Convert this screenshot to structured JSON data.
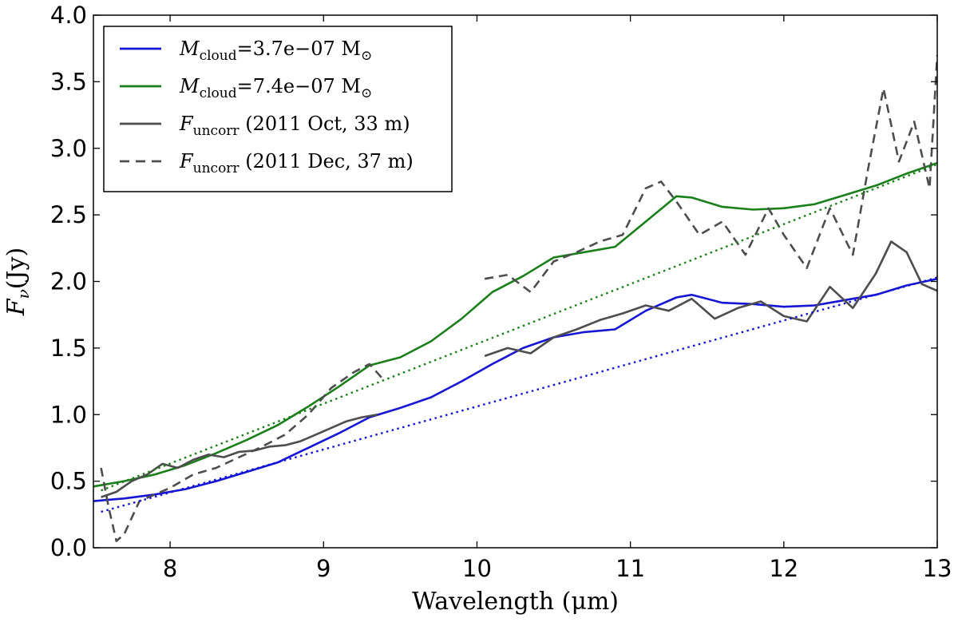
{
  "chart_data": {
    "type": "line",
    "xlabel": "Wavelength (μm)",
    "ylabel": "F_ν (Jy)",
    "ylabel_main": "F",
    "ylabel_sub": "ν",
    "ylabel_unit": "(Jy)",
    "xlim": [
      7.5,
      13
    ],
    "ylim": [
      0.0,
      4.0
    ],
    "x_ticks": [
      8,
      9,
      10,
      11,
      12,
      13
    ],
    "y_ticks": [
      0.0,
      0.5,
      1.0,
      1.5,
      2.0,
      2.5,
      3.0,
      3.5,
      4.0
    ],
    "x_tick_labels": [
      "8",
      "9",
      "10",
      "11",
      "12",
      "13"
    ],
    "y_tick_labels": [
      "0.0",
      "0.5",
      "1.0",
      "1.5",
      "2.0",
      "2.5",
      "3.0",
      "3.5",
      "4.0"
    ],
    "grid": false,
    "legend_position": "top-left",
    "series": [
      {
        "name": "M_cloud = 3.7e-07 M_sun",
        "legend_main": "M",
        "legend_sub": "cloud",
        "legend_rest": "=3.7e−07 M",
        "legend_sun": "⊙",
        "color": "#1515d4",
        "style": "solid",
        "x": [
          7.5,
          7.7,
          7.9,
          8.1,
          8.3,
          8.5,
          8.7,
          8.9,
          9.1,
          9.3,
          9.5,
          9.7,
          9.9,
          10.1,
          10.3,
          10.5,
          10.7,
          10.9,
          11.1,
          11.3,
          11.4,
          11.6,
          11.8,
          12.0,
          12.2,
          12.4,
          12.6,
          12.8,
          13.0
        ],
        "y": [
          0.35,
          0.37,
          0.4,
          0.44,
          0.5,
          0.57,
          0.64,
          0.75,
          0.86,
          0.98,
          1.05,
          1.13,
          1.25,
          1.38,
          1.5,
          1.58,
          1.62,
          1.64,
          1.78,
          1.88,
          1.9,
          1.84,
          1.83,
          1.81,
          1.82,
          1.86,
          1.9,
          1.97,
          2.02
        ]
      },
      {
        "name": "M_cloud = 7.4e-07 M_sun",
        "legend_main": "M",
        "legend_sub": "cloud",
        "legend_rest": "=7.4e−07 M",
        "legend_sun": "⊙",
        "color": "#1a7f1a",
        "style": "solid",
        "x": [
          7.5,
          7.7,
          7.9,
          8.1,
          8.3,
          8.5,
          8.7,
          8.9,
          9.1,
          9.3,
          9.5,
          9.7,
          9.9,
          10.1,
          10.3,
          10.5,
          10.7,
          10.9,
          11.1,
          11.3,
          11.4,
          11.6,
          11.8,
          12.0,
          12.2,
          12.4,
          12.6,
          12.8,
          13.0
        ],
        "y": [
          0.46,
          0.5,
          0.55,
          0.62,
          0.71,
          0.81,
          0.92,
          1.06,
          1.21,
          1.37,
          1.43,
          1.55,
          1.72,
          1.92,
          2.04,
          2.18,
          2.22,
          2.26,
          2.45,
          2.64,
          2.63,
          2.56,
          2.54,
          2.55,
          2.58,
          2.65,
          2.72,
          2.81,
          2.89
        ]
      },
      {
        "name": "F_uncorr (2011 Oct, 33 m)",
        "legend_main": "F",
        "legend_sub": "uncorr",
        "legend_rest": "(2011 Oct, 33 m)",
        "color": "#4d4d4d",
        "style": "solid",
        "x": [
          7.55,
          7.65,
          7.75,
          7.85,
          7.95,
          8.05,
          8.15,
          8.25,
          8.35,
          8.45,
          8.55,
          8.65,
          8.75,
          8.85,
          8.95,
          9.05,
          9.15,
          9.25,
          9.35
        ],
        "y": [
          0.38,
          0.42,
          0.5,
          0.55,
          0.63,
          0.6,
          0.66,
          0.7,
          0.68,
          0.72,
          0.73,
          0.76,
          0.77,
          0.8,
          0.85,
          0.9,
          0.95,
          0.98,
          1.0
        ]
      },
      {
        "name": "F_uncorr (2011 Oct, 33 m) segment 2",
        "color": "#4d4d4d",
        "style": "solid",
        "x": [
          10.05,
          10.2,
          10.35,
          10.5,
          10.65,
          10.8,
          10.95,
          11.1,
          11.25,
          11.4,
          11.55,
          11.7,
          11.85,
          12.0,
          12.15,
          12.3,
          12.45,
          12.6,
          12.7,
          12.8,
          12.9,
          13.0
        ],
        "y": [
          1.44,
          1.5,
          1.46,
          1.58,
          1.64,
          1.71,
          1.76,
          1.82,
          1.78,
          1.87,
          1.72,
          1.8,
          1.85,
          1.74,
          1.7,
          1.96,
          1.8,
          2.06,
          2.3,
          2.22,
          1.98,
          1.93
        ]
      },
      {
        "name": "F_uncorr (2011 Dec, 37 m)",
        "legend_main": "F",
        "legend_sub": "uncorr",
        "legend_rest": "(2011 Dec, 37 m)",
        "color": "#4d4d4d",
        "style": "dashed",
        "x": [
          7.55,
          7.6,
          7.65,
          7.7,
          7.8,
          7.9,
          8.0,
          8.15,
          8.3,
          8.45,
          8.6,
          8.75,
          8.9,
          9.05,
          9.2,
          9.3,
          9.4
        ],
        "y": [
          0.6,
          0.3,
          0.05,
          0.1,
          0.35,
          0.4,
          0.45,
          0.55,
          0.6,
          0.68,
          0.76,
          0.85,
          1.0,
          1.2,
          1.32,
          1.38,
          1.25
        ]
      },
      {
        "name": "F_uncorr (2011 Dec, 37 m) segment 2",
        "color": "#4d4d4d",
        "style": "dashed",
        "x": [
          10.05,
          10.2,
          10.35,
          10.5,
          10.65,
          10.8,
          10.95,
          11.1,
          11.2,
          11.3,
          11.45,
          11.6,
          11.75,
          11.9,
          12.0,
          12.15,
          12.3,
          12.45,
          12.55,
          12.65,
          12.75,
          12.85,
          12.95,
          13.0
        ],
        "y": [
          2.02,
          2.05,
          1.92,
          2.15,
          2.22,
          2.3,
          2.35,
          2.7,
          2.75,
          2.6,
          2.35,
          2.45,
          2.2,
          2.55,
          2.35,
          2.1,
          2.55,
          2.2,
          2.85,
          3.45,
          2.9,
          3.2,
          2.7,
          3.7
        ]
      },
      {
        "name": "continuum 3.7e-07",
        "color": "#1515d4",
        "style": "dotted",
        "x": [
          7.55,
          13.0
        ],
        "y": [
          0.27,
          2.03
        ]
      },
      {
        "name": "continuum 7.4e-07",
        "color": "#1a7f1a",
        "style": "dotted",
        "x": [
          7.55,
          13.0
        ],
        "y": [
          0.43,
          2.88
        ]
      }
    ]
  }
}
